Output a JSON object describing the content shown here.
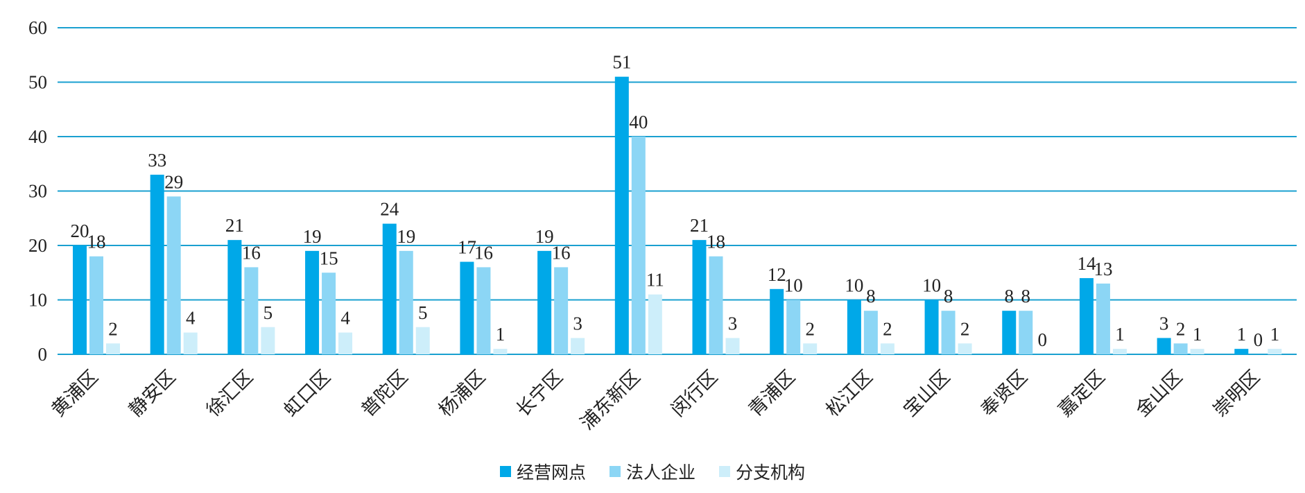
{
  "chart_data": {
    "type": "bar",
    "categories": [
      "黄浦区",
      "静安区",
      "徐汇区",
      "虹口区",
      "普陀区",
      "杨浦区",
      "长宁区",
      "浦东新区",
      "闵行区",
      "青浦区",
      "松江区",
      "宝山区",
      "奉贤区",
      "嘉定区",
      "金山区",
      "崇明区"
    ],
    "series": [
      {
        "name": "经营网点",
        "color": "#00a8e8",
        "values": [
          20,
          33,
          21,
          19,
          24,
          17,
          19,
          51,
          21,
          12,
          10,
          10,
          8,
          14,
          3,
          1
        ]
      },
      {
        "name": "法人企业",
        "color": "#8cd6f5",
        "values": [
          18,
          29,
          16,
          15,
          19,
          16,
          16,
          40,
          18,
          10,
          8,
          8,
          8,
          13,
          2,
          0
        ]
      },
      {
        "name": "分支机构",
        "color": "#cdeefa",
        "values": [
          2,
          4,
          5,
          4,
          5,
          1,
          3,
          11,
          3,
          2,
          2,
          2,
          0,
          1,
          1,
          1
        ]
      }
    ],
    "ylim": [
      0,
      60
    ],
    "yticks": [
      0,
      10,
      20,
      30,
      40,
      50,
      60
    ],
    "grid": true,
    "grid_color": "#1aa0d0",
    "legend_position": "bottom-center",
    "xlabel": "",
    "ylabel": "",
    "title": ""
  }
}
